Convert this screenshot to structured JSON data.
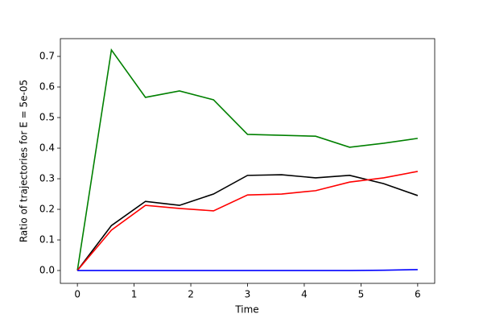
{
  "chart_data": {
    "type": "line",
    "xlabel": "Time",
    "ylabel": "Ratio of trajectories for E = 5e-05",
    "x": [
      0,
      0.6,
      1.2,
      1.8,
      2.4,
      3.0,
      3.6,
      4.2,
      4.8,
      5.4,
      6.0
    ],
    "series": [
      {
        "color": "#008000",
        "values": [
          0,
          0.721,
          0.566,
          0.587,
          0.558,
          0.445,
          0.442,
          0.439,
          0.403,
          0.416,
          0.432
        ]
      },
      {
        "color": "#000000",
        "values": [
          0,
          0.147,
          0.226,
          0.213,
          0.25,
          0.311,
          0.313,
          0.303,
          0.311,
          0.284,
          0.245
        ]
      },
      {
        "color": "#ff0000",
        "values": [
          0,
          0.132,
          0.213,
          0.203,
          0.195,
          0.247,
          0.25,
          0.261,
          0.289,
          0.303,
          0.324
        ]
      },
      {
        "color": "#0000ff",
        "values": [
          0,
          0,
          0,
          0,
          0,
          0,
          0,
          0,
          0,
          0.001,
          0.003
        ]
      }
    ],
    "xlim": [
      -0.3,
      6.3
    ],
    "ylim": [
      -0.042,
      0.758
    ],
    "xticks": [
      0,
      1,
      2,
      3,
      4,
      5,
      6
    ],
    "yticks": [
      {
        "value": 0,
        "label": "0.0"
      },
      0.1,
      0.2,
      0.3,
      0.4,
      0.5,
      0.6,
      0.7
    ],
    "grid": false
  }
}
